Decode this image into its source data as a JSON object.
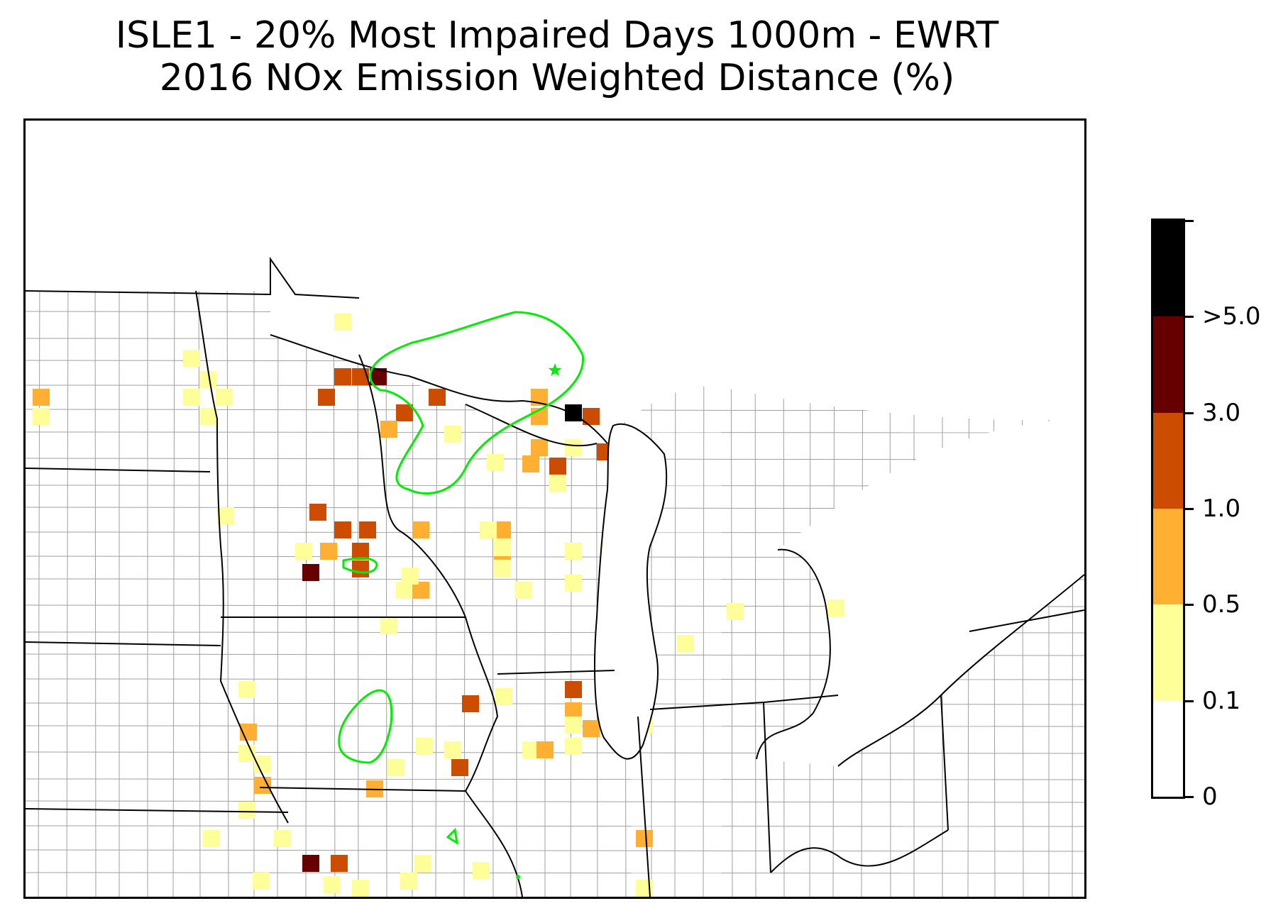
{
  "title": {
    "line1": "ISLE1 - 20% Most Impaired Days 1000m - EWRT",
    "line2": "2016 NOx Emission Weighted Distance (%)"
  },
  "colors": {
    "bin_0": "#ffffff",
    "bin_1": "#ffff99",
    "bin_2": "#ffb033",
    "bin_3": "#cc4c02",
    "bin_4": "#660000",
    "bin_5": "#000000",
    "contour": "#00ee00",
    "state_border": "#000000",
    "county_border": "#a0a0a0"
  },
  "colorbar": {
    "labels": [
      "0",
      "0.1",
      "0.5",
      "1.0",
      "3.0",
      ">5.0"
    ],
    "bins": [
      {
        "color": "#ffffff"
      },
      {
        "color": "#ffff99"
      },
      {
        "color": "#ffb033"
      },
      {
        "color": "#cc4c02"
      },
      {
        "color": "#660000"
      },
      {
        "color": "#000000"
      }
    ]
  },
  "map": {
    "site_marker": "star-icon",
    "cells": [
      {
        "bin": 1
      },
      {
        "bin": 1
      },
      {
        "bin": 1
      },
      {
        "bin": 1
      },
      {
        "bin": 1
      },
      {
        "bin": 1
      },
      {
        "bin": 2
      },
      {
        "bin": 1
      },
      {
        "bin": 3
      },
      {
        "bin": 3
      },
      {
        "bin": 4
      },
      {
        "bin": 3
      },
      {
        "bin": 3
      },
      {
        "bin": 3
      },
      {
        "bin": 2
      },
      {
        "bin": 2
      },
      {
        "bin": 2
      },
      {
        "bin": 5
      },
      {
        "bin": 3
      },
      {
        "bin": 3
      },
      {
        "bin": 1
      },
      {
        "bin": 2
      },
      {
        "bin": 3
      },
      {
        "bin": 1
      },
      {
        "bin": 1
      },
      {
        "bin": 2
      },
      {
        "bin": 1
      },
      {
        "bin": 3
      },
      {
        "bin": 3
      },
      {
        "bin": 3
      },
      {
        "bin": 2
      },
      {
        "bin": 3
      },
      {
        "bin": 2
      },
      {
        "bin": 2
      },
      {
        "bin": 1
      },
      {
        "bin": 2
      },
      {
        "bin": 1
      },
      {
        "bin": 1
      },
      {
        "bin": 1
      },
      {
        "bin": 4
      },
      {
        "bin": 1
      },
      {
        "bin": 3
      },
      {
        "bin": 1
      },
      {
        "bin": 1
      },
      {
        "bin": 2
      },
      {
        "bin": 1
      },
      {
        "bin": 1
      },
      {
        "bin": 1
      },
      {
        "bin": 1
      },
      {
        "bin": 1
      },
      {
        "bin": 1
      },
      {
        "bin": 2
      },
      {
        "bin": 1
      },
      {
        "bin": 1
      },
      {
        "bin": 3
      },
      {
        "bin": 1
      },
      {
        "bin": 1
      },
      {
        "bin": 3
      },
      {
        "bin": 2
      },
      {
        "bin": 1
      },
      {
        "bin": 1
      },
      {
        "bin": 2
      },
      {
        "bin": 1
      },
      {
        "bin": 1
      },
      {
        "bin": 2
      },
      {
        "bin": 3
      },
      {
        "bin": 1
      },
      {
        "bin": 1
      },
      {
        "bin": 1
      },
      {
        "bin": 2
      },
      {
        "bin": 1
      },
      {
        "bin": 1
      },
      {
        "bin": 2
      },
      {
        "bin": 2
      },
      {
        "bin": 1
      },
      {
        "bin": 1
      },
      {
        "bin": 1
      },
      {
        "bin": 4
      },
      {
        "bin": 3
      },
      {
        "bin": 1
      },
      {
        "bin": 1
      },
      {
        "bin": 1
      },
      {
        "bin": 1
      },
      {
        "bin": 1
      },
      {
        "bin": 1
      },
      {
        "bin": 2
      },
      {
        "bin": 1
      }
    ]
  }
}
